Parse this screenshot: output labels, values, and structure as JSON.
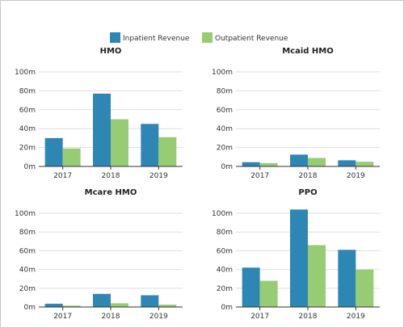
{
  "legend": [
    {
      "name": "Inpatient Revenue",
      "color": "#2e86b5"
    },
    {
      "name": "Outpatient Revenue",
      "color": "#98cc74"
    }
  ],
  "chart_data": [
    {
      "type": "bar",
      "title": "HMO",
      "categories": [
        "2017",
        "2018",
        "2019"
      ],
      "series": [
        {
          "name": "Inpatient Revenue",
          "values": [
            30,
            77,
            45
          ]
        },
        {
          "name": "Outpatient Revenue",
          "values": [
            19,
            50,
            31
          ]
        }
      ],
      "ylim": [
        0,
        100
      ],
      "yticks": [
        "0m",
        "20m",
        "40m",
        "60m",
        "80m",
        "100m"
      ],
      "grid": true
    },
    {
      "type": "bar",
      "title": "Mcaid HMO",
      "categories": [
        "2017",
        "2018",
        "2019"
      ],
      "series": [
        {
          "name": "Inpatient Revenue",
          "values": [
            4.5,
            12.5,
            6.5
          ]
        },
        {
          "name": "Outpatient Revenue",
          "values": [
            3.5,
            9,
            5
          ]
        }
      ],
      "ylim": [
        0,
        100
      ],
      "yticks": [
        "0m",
        "20m",
        "40m",
        "60m",
        "80m",
        "100m"
      ],
      "grid": true
    },
    {
      "type": "bar",
      "title": "Mcare HMO",
      "categories": [
        "2017",
        "2018",
        "2019"
      ],
      "series": [
        {
          "name": "Inpatient Revenue",
          "values": [
            3.5,
            14,
            12.5
          ]
        },
        {
          "name": "Outpatient Revenue",
          "values": [
            1.5,
            4,
            2.5
          ]
        }
      ],
      "ylim": [
        0,
        100
      ],
      "yticks": [
        "0m",
        "20m",
        "40m",
        "60m",
        "80m",
        "100m"
      ],
      "grid": true
    },
    {
      "type": "bar",
      "title": "PPO",
      "categories": [
        "2017",
        "2018",
        "2019"
      ],
      "series": [
        {
          "name": "Inpatient Revenue",
          "values": [
            42,
            104,
            61
          ]
        },
        {
          "name": "Outpatient Revenue",
          "values": [
            28,
            66,
            40
          ]
        }
      ],
      "ylim": [
        0,
        100
      ],
      "yticks": [
        "0m",
        "20m",
        "40m",
        "60m",
        "80m",
        "100m"
      ],
      "grid": true
    }
  ]
}
